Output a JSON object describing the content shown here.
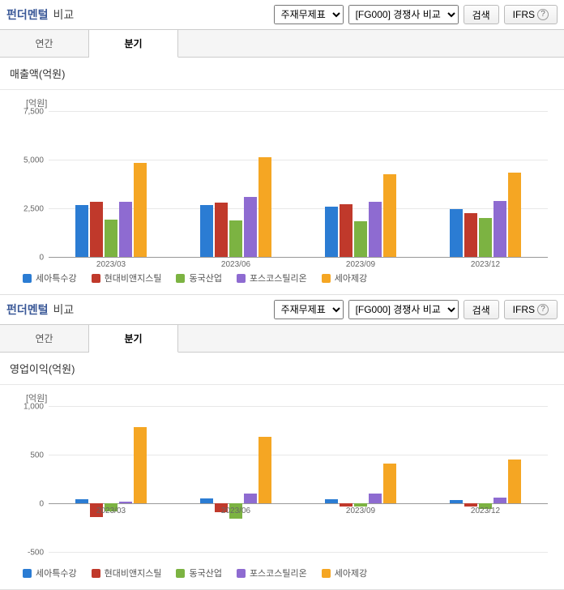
{
  "panels": [
    {
      "title_main": "펀더멘털",
      "title_sub": "비교",
      "select1": "주재무제표",
      "select2": "[FG000] 경쟁사 비교",
      "search_btn": "검색",
      "ifrs_btn": "IFRS",
      "tabs": {
        "annual": "연간",
        "quarter": "분기",
        "active": "quarter"
      },
      "chart": {
        "title": "매출액(억원)",
        "y_unit": "[억원]",
        "type": "bar",
        "ylim": [
          0,
          7500
        ],
        "yticks": [
          0,
          2500,
          5000,
          7500
        ],
        "categories": [
          "2023/03",
          "2023/06",
          "2023/09",
          "2023/12"
        ],
        "series": [
          {
            "name": "세아특수강",
            "color": "#2b7cd3",
            "values": [
              2680,
              2650,
              2580,
              2450
            ]
          },
          {
            "name": "현대비앤지스틸",
            "color": "#c0392b",
            "values": [
              2850,
              2800,
              2700,
              2250
            ]
          },
          {
            "name": "동국산업",
            "color": "#7cb342",
            "values": [
              1900,
              1880,
              1820,
              2000
            ]
          },
          {
            "name": "포스코스틸리온",
            "color": "#8e6bd1",
            "values": [
              2850,
              3100,
              2850,
              2880
            ]
          },
          {
            "name": "세아제강",
            "color": "#f5a623",
            "values": [
              4850,
              5120,
              4250,
              4350
            ]
          }
        ],
        "background_color": "#ffffff",
        "grid_color": "#e8e8e8",
        "label_fontsize": 10
      }
    },
    {
      "title_main": "펀더멘털",
      "title_sub": "비교",
      "select1": "주재무제표",
      "select2": "[FG000] 경쟁사 비교",
      "search_btn": "검색",
      "ifrs_btn": "IFRS",
      "tabs": {
        "annual": "연간",
        "quarter": "분기",
        "active": "quarter"
      },
      "chart": {
        "title": "영업이익(억원)",
        "y_unit": "[억원]",
        "type": "bar",
        "ylim": [
          -500,
          1000
        ],
        "yticks": [
          -500,
          0,
          500,
          1000
        ],
        "categories": [
          "2023/03",
          "2023/06",
          "2023/09",
          "2023/12"
        ],
        "series": [
          {
            "name": "세아특수강",
            "color": "#2b7cd3",
            "values": [
              40,
              50,
              45,
              35
            ]
          },
          {
            "name": "현대비앤지스틸",
            "color": "#c0392b",
            "values": [
              -140,
              -90,
              -30,
              -30
            ]
          },
          {
            "name": "동국산업",
            "color": "#7cb342",
            "values": [
              -80,
              -160,
              -30,
              -60
            ]
          },
          {
            "name": "포스코스틸리온",
            "color": "#8e6bd1",
            "values": [
              20,
              100,
              100,
              55
            ]
          },
          {
            "name": "세아제강",
            "color": "#f5a623",
            "values": [
              780,
              680,
              410,
              450
            ]
          }
        ],
        "background_color": "#ffffff",
        "grid_color": "#e8e8e8",
        "label_fontsize": 10
      }
    }
  ]
}
